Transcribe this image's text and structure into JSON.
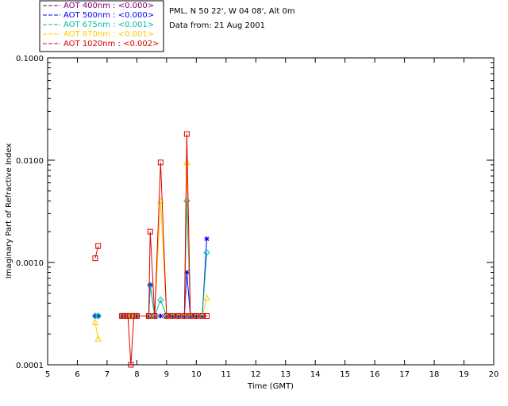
{
  "chart_data": {
    "type": "line",
    "xlabel": "Time (GMT)",
    "ylabel": "Imaginary Part of Refractive Index",
    "xlim": [
      5,
      20
    ],
    "ylim": [
      0.0001,
      0.1
    ],
    "yscale": "log",
    "x_ticks": [
      "5",
      "6",
      "7",
      "8",
      "9",
      "10",
      "11",
      "12",
      "13",
      "14",
      "15",
      "16",
      "17",
      "18",
      "19",
      "20"
    ],
    "y_ticks": [
      {
        "value": 0.0001,
        "label": "0.0001"
      },
      {
        "value": 0.001,
        "label": "0.0010"
      },
      {
        "value": 0.01,
        "label": "0.0100"
      },
      {
        "value": 0.1,
        "label": "0.1000"
      }
    ],
    "info_lines": [
      "PML, N 50 22', W 04 08', Alt 0m",
      "Data from: 21 Aug 2001"
    ],
    "legend_position": "top-left",
    "series": [
      {
        "name": "AOT 400nm : <0.000>",
        "color": "#800080",
        "marker": "plus",
        "segments": [
          [
            [
              7.5,
              0.0003
            ],
            [
              7.6,
              0.0003
            ],
            [
              7.7,
              0.0003
            ],
            [
              7.8,
              0.0003
            ],
            [
              7.9,
              0.0003
            ],
            [
              8.0,
              0.0003
            ],
            [
              8.4,
              0.0003
            ],
            [
              8.6,
              0.0003
            ],
            [
              8.8,
              0.0003
            ],
            [
              9.0,
              0.0003
            ],
            [
              9.1,
              0.0003
            ],
            [
              9.2,
              0.0003
            ],
            [
              9.3,
              0.0003
            ],
            [
              9.4,
              0.0003
            ],
            [
              9.6,
              0.0003
            ],
            [
              9.8,
              0.0003
            ],
            [
              9.9,
              0.0003
            ],
            [
              10.0,
              0.0003
            ],
            [
              10.2,
              0.0003
            ],
            [
              10.3,
              0.0003
            ]
          ]
        ]
      },
      {
        "name": "AOT 500nm : <0.000>",
        "color": "#0000ff",
        "marker": "asterisk",
        "segments": [
          [
            [
              6.6,
              0.0003
            ],
            [
              6.7,
              0.0003
            ]
          ],
          [
            [
              7.5,
              0.0003
            ],
            [
              7.6,
              0.0003
            ],
            [
              7.7,
              0.0003
            ],
            [
              7.8,
              0.0003
            ],
            [
              7.9,
              0.0003
            ],
            [
              8.0,
              0.0003
            ],
            [
              8.4,
              0.0003
            ],
            [
              8.45,
              0.0006
            ],
            [
              8.6,
              0.0003
            ],
            [
              8.8,
              0.0003
            ],
            [
              9.0,
              0.0003
            ],
            [
              9.2,
              0.0003
            ],
            [
              9.4,
              0.0003
            ],
            [
              9.6,
              0.0003
            ],
            [
              9.68,
              0.0008
            ],
            [
              9.8,
              0.0003
            ],
            [
              10.0,
              0.0003
            ],
            [
              10.2,
              0.0003
            ],
            [
              10.35,
              0.0017
            ]
          ]
        ]
      },
      {
        "name": "AOT 675nm : <0.001>",
        "color": "#00bbaa",
        "marker": "diamond",
        "segments": [
          [
            [
              6.6,
              0.0003
            ],
            [
              6.7,
              0.0003
            ]
          ],
          [
            [
              7.5,
              0.0003
            ],
            [
              7.6,
              0.0003
            ],
            [
              7.7,
              0.0003
            ],
            [
              7.8,
              0.0003
            ],
            [
              7.9,
              0.0003
            ],
            [
              8.0,
              0.0003
            ],
            [
              8.4,
              0.0003
            ],
            [
              8.45,
              0.0006
            ],
            [
              8.6,
              0.0003
            ],
            [
              8.8,
              0.00043
            ],
            [
              9.0,
              0.0003
            ],
            [
              9.2,
              0.0003
            ],
            [
              9.4,
              0.0003
            ],
            [
              9.6,
              0.0003
            ],
            [
              9.68,
              0.004
            ],
            [
              9.8,
              0.0003
            ],
            [
              10.0,
              0.0003
            ],
            [
              10.2,
              0.0003
            ],
            [
              10.35,
              0.00125
            ]
          ]
        ]
      },
      {
        "name": "AOT 870nm : <0.001>",
        "color": "#ffcc00",
        "marker": "triangle",
        "segments": [
          [
            [
              6.6,
              0.00026
            ],
            [
              6.7,
              0.00018
            ]
          ],
          [
            [
              7.5,
              0.0003
            ],
            [
              7.6,
              0.0003
            ],
            [
              7.7,
              0.0003
            ],
            [
              7.8,
              0.0003
            ],
            [
              7.9,
              0.0003
            ],
            [
              8.0,
              0.0003
            ],
            [
              8.4,
              0.0003
            ],
            [
              8.6,
              0.0003
            ],
            [
              8.8,
              0.004
            ],
            [
              9.0,
              0.0003
            ],
            [
              9.2,
              0.0003
            ],
            [
              9.4,
              0.0003
            ],
            [
              9.6,
              0.0003
            ],
            [
              9.68,
              0.0095
            ],
            [
              9.8,
              0.0003
            ],
            [
              10.0,
              0.0003
            ],
            [
              10.2,
              0.0003
            ],
            [
              10.35,
              0.00045
            ]
          ]
        ]
      },
      {
        "name": "AOT 1020nm : <0.002>",
        "color": "#dd0000",
        "marker": "square",
        "segments": [
          [
            [
              6.6,
              0.0011
            ],
            [
              6.7,
              0.00145
            ]
          ],
          [
            [
              7.5,
              0.0003
            ],
            [
              7.6,
              0.0003
            ],
            [
              7.7,
              0.0003
            ],
            [
              7.8,
              0.0001
            ],
            [
              7.9,
              0.0003
            ],
            [
              8.0,
              0.0003
            ],
            [
              8.4,
              0.0003
            ],
            [
              8.45,
              0.002
            ],
            [
              8.6,
              0.0003
            ],
            [
              8.8,
              0.0095
            ],
            [
              9.0,
              0.0003
            ],
            [
              9.2,
              0.0003
            ],
            [
              9.4,
              0.0003
            ],
            [
              9.6,
              0.0003
            ],
            [
              9.68,
              0.018
            ],
            [
              9.8,
              0.0003
            ],
            [
              10.0,
              0.0003
            ],
            [
              10.2,
              0.0003
            ],
            [
              10.35,
              0.0003
            ]
          ]
        ]
      }
    ]
  }
}
